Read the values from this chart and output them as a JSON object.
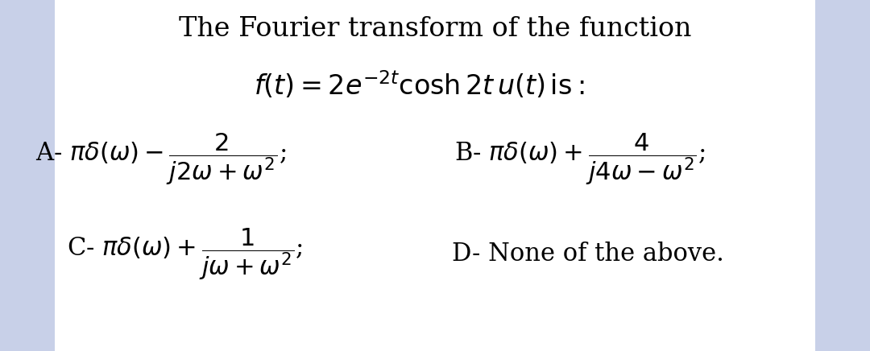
{
  "bg_color": "#ffffff",
  "side_color": "#c8d0e8",
  "title_line1": "The Fourier transform of the function",
  "func_line": "$f(t) = 2e^{-2t}\\cosh 2t\\, u(t)\\,\\mathrm{is:}$",
  "option_A": "A- $\\pi\\delta(\\omega) - \\dfrac{2}{j2\\omega+\\omega^2}$;",
  "option_B": "B- $\\pi\\delta(\\omega) + \\dfrac{4}{j4\\omega-\\omega^2}$;",
  "option_C": "C- $\\pi\\delta(\\omega) + \\dfrac{1}{j\\omega+\\omega^2}$;",
  "option_D": "D- None of the above.",
  "fig_width": 10.8,
  "fig_height": 4.36,
  "dpi": 100
}
